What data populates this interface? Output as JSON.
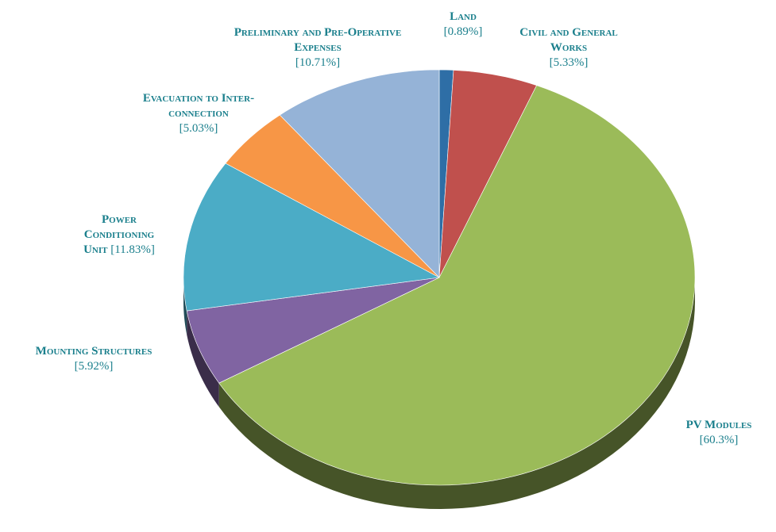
{
  "chart_data": {
    "type": "pie",
    "categories": [
      "Land",
      "Civil and General Works",
      "PV Modules",
      "Mounting Structures",
      "Power Conditioning Unit",
      "Evacuation to Inter-connection",
      "Preliminary and Pre-Operative Expenses"
    ],
    "values": [
      0.89,
      5.33,
      60.3,
      5.92,
      11.83,
      5.03,
      10.71
    ],
    "value_labels": [
      "[0.89%]",
      "[5.33%]",
      "[60.3%]",
      "[5.92%]",
      "[11.83%]",
      "[5.03%]",
      "[10.71%]"
    ],
    "colors": [
      "#2e6ea6",
      "#c0504d",
      "#9bbb59",
      "#8064a2",
      "#4bacc6",
      "#f79646",
      "#95b3d7"
    ]
  }
}
